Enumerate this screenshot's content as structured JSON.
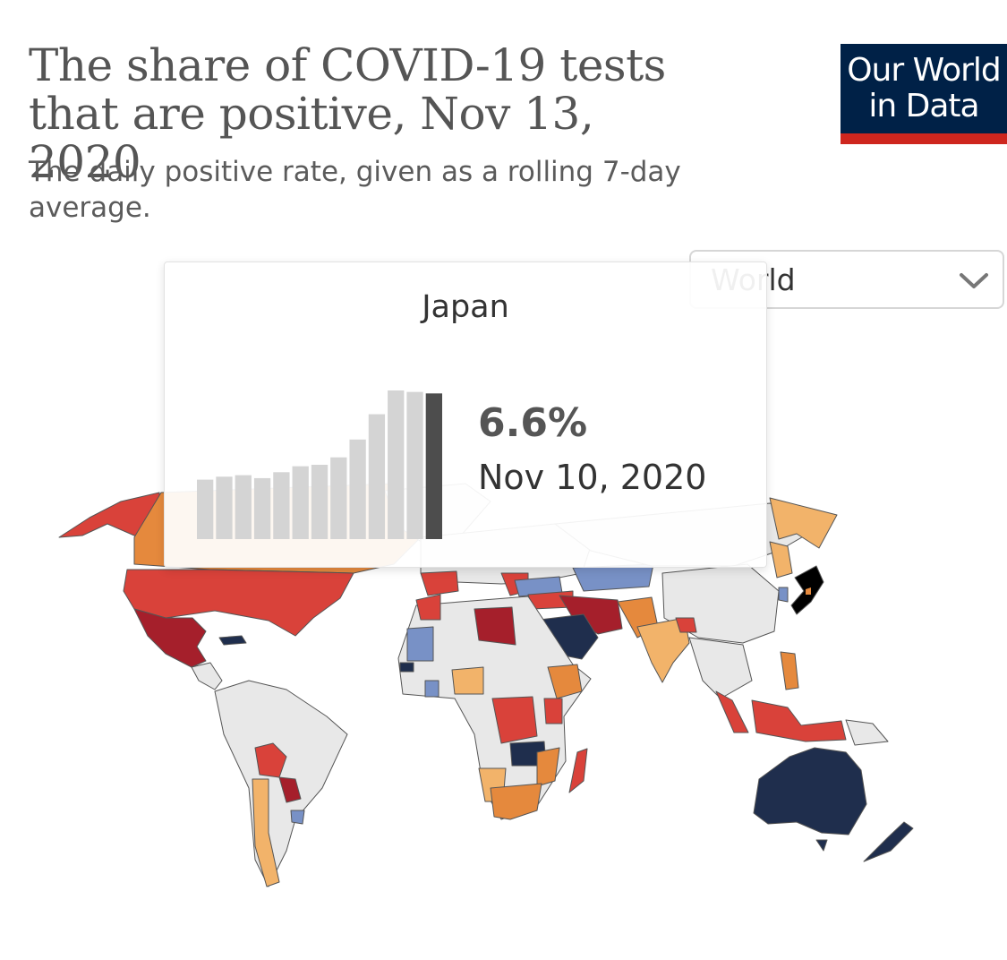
{
  "header": {
    "title": "The share of COVID-19 tests that are positive, Nov 13, 2020",
    "subtitle": "The daily positive rate, given as a rolling 7-day average."
  },
  "logo": {
    "line1": "Our World",
    "line2": "in Data",
    "bg_color": "#002147",
    "accent_color": "#ce261e"
  },
  "region_select": {
    "value": "World",
    "icon": "chevron-down-icon"
  },
  "tooltip": {
    "country": "Japan",
    "value": "6.6%",
    "date": "Nov 10, 2020",
    "sparkline_levels": [
      0.4,
      0.42,
      0.43,
      0.41,
      0.45,
      0.49,
      0.5,
      0.55,
      0.67,
      0.84,
      1.0,
      0.99,
      0.98
    ]
  },
  "map": {
    "colors": {
      "no_data": "#e8e8e8",
      "lowest": "#1f2e4d",
      "low": "#7891c6",
      "medium": "#f2b36a",
      "medium_high": "#e5893d",
      "high": "#d9423a",
      "highest": "#a51f2b",
      "highlighted": "#000000"
    }
  }
}
